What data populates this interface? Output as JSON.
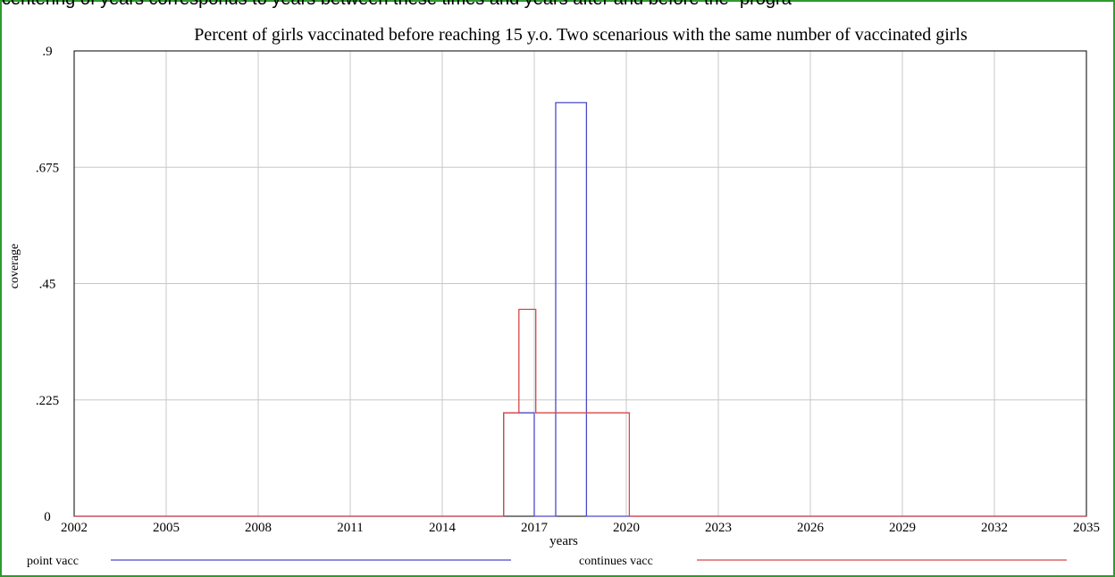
{
  "cut_caption": "centering of years corresponds to years between these times and years after and before the “progra",
  "chart_data": {
    "type": "line",
    "title": "Percent of girls vaccinated before reaching 15 y.o. Two scenarious with the same number of vaccinated girls",
    "xlabel": "years",
    "ylabel": "coverage",
    "xlim": [
      2002,
      2035
    ],
    "ylim": [
      0,
      0.9
    ],
    "x_ticks": [
      "2002",
      "2005",
      "2008",
      "2011",
      "2014",
      "2017",
      "2020",
      "2023",
      "2026",
      "2029",
      "2032",
      "2035"
    ],
    "y_ticks": [
      {
        "value": 0,
        "label": "0"
      },
      {
        "value": 0.225,
        "label": ".225"
      },
      {
        "value": 0.45,
        "label": ".45"
      },
      {
        "value": 0.675,
        "label": ".675"
      },
      {
        "value": 0.9,
        "label": ".9"
      }
    ],
    "grid": true,
    "legend_position": "bottom",
    "series": [
      {
        "name": "point vacc",
        "color": "#4a4ac8",
        "x": [
          2002,
          2016,
          2016,
          2017,
          2017,
          2017.7,
          2017.7,
          2018.7,
          2018.7,
          2035
        ],
        "y": [
          0,
          0,
          0.2,
          0.2,
          0,
          0,
          0.8,
          0.8,
          0,
          0
        ]
      },
      {
        "name": "continues vacc",
        "color": "#d84848",
        "x": [
          2002,
          2016,
          2016,
          2016.5,
          2016.5,
          2017.05,
          2017.05,
          2020.1,
          2020.1,
          2035
        ],
        "y": [
          0,
          0,
          0.2,
          0.2,
          0.4,
          0.4,
          0.2,
          0.2,
          0,
          0
        ]
      }
    ]
  }
}
